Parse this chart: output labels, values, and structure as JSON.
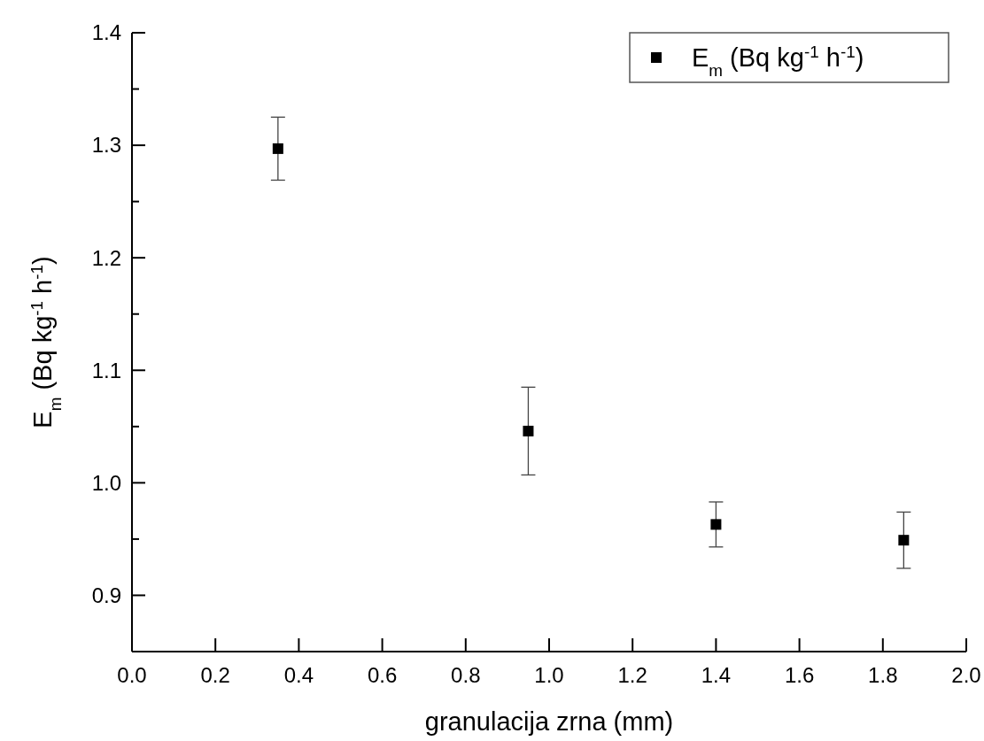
{
  "chart_data": {
    "type": "scatter",
    "xlabel": "granulacija zrna (mm)",
    "ylabel": "E$_{m}$ (Bq kg$^{-1}$ h$^{-1}$)",
    "x": [
      0.35,
      0.95,
      1.4,
      1.85
    ],
    "series": [
      {
        "name": "E$_{m}$ (Bq kg$^{-1}$ h$^{-1}$)",
        "color": "#000000",
        "values": [
          1.297,
          1.046,
          0.963,
          0.949
        ],
        "errors": [
          0.028,
          0.039,
          0.02,
          0.025
        ]
      }
    ],
    "xlim": [
      0,
      2
    ],
    "xticks": [
      {
        "value": 0,
        "label": "0.0"
      },
      0.2,
      0.4,
      0.6,
      0.8,
      {
        "value": 1,
        "label": "1.0"
      },
      1.2,
      1.4,
      1.6,
      1.8,
      {
        "value": 2,
        "label": "2.0"
      }
    ],
    "ylim": [
      0.85,
      1.4
    ],
    "yticks": [
      0.9,
      {
        "value": 0.95,
        "label": null
      },
      {
        "value": 1,
        "label": "1.0"
      },
      {
        "value": 1.05,
        "label": null
      },
      1.1,
      {
        "value": 1.15,
        "label": null
      },
      1.2,
      {
        "value": 1.25,
        "label": null
      },
      1.3,
      {
        "value": 1.35,
        "label": null
      },
      1.4
    ],
    "marker": "square",
    "legend": "top right",
    "grid": false
  }
}
